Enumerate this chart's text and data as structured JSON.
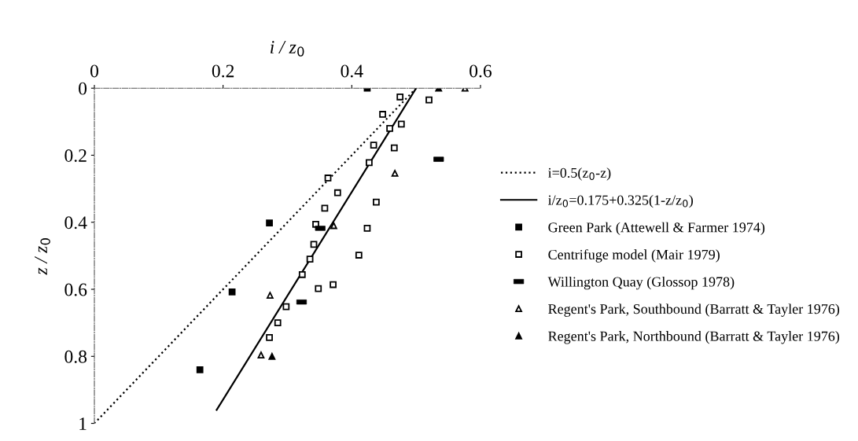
{
  "chart_data": {
    "type": "scatter",
    "xlabel": "i / z$_{0}$",
    "ylabel": "z / z$_{0}$",
    "xlim": [
      0,
      0.6
    ],
    "ylim": [
      1,
      0
    ],
    "xticks": [
      0,
      0.2,
      0.4,
      0.6
    ],
    "yticks": [
      0,
      0.2,
      0.4,
      0.6,
      0.8,
      1
    ],
    "grid": false,
    "legend": "right",
    "series": [
      {
        "name": "i=0.5(z$_{0}$-z)",
        "type": "line",
        "line_style": "dotted",
        "marker": "none",
        "color": "#000000",
        "x": [
          0.5,
          0
        ],
        "values": [
          0,
          1
        ]
      },
      {
        "name": "i/z$_{0}$=0.175+0.325(1-z/z$_{0}$)",
        "type": "line",
        "line_style": "solid",
        "marker": "none",
        "color": "#000000",
        "x": [
          0.5,
          0.19
        ],
        "values": [
          0,
          0.96
        ]
      },
      {
        "name": "Green Park (Attewell & Farmer 1974)",
        "marker": "square",
        "color": "#000000",
        "x": [
          0.424,
          0.272,
          0.214,
          0.164
        ],
        "values": [
          0,
          0.402,
          0.608,
          0.84
        ]
      },
      {
        "name": "Centrifuge model (Mair 1979)",
        "marker": "square_open",
        "color": "#000000",
        "x": [
          0.52,
          0.475,
          0.448,
          0.477,
          0.459,
          0.434,
          0.466,
          0.427,
          0.363,
          0.378,
          0.438,
          0.358,
          0.344,
          0.424,
          0.341,
          0.411,
          0.335,
          0.323,
          0.348,
          0.371,
          0.298,
          0.285,
          0.272
        ],
        "values": [
          0.035,
          0.026,
          0.078,
          0.107,
          0.12,
          0.17,
          0.178,
          0.222,
          0.268,
          0.312,
          0.34,
          0.358,
          0.406,
          0.418,
          0.466,
          0.498,
          0.51,
          0.556,
          0.598,
          0.586,
          0.652,
          0.7,
          0.744
        ]
      },
      {
        "name": "Willington Quay (Glossop 1978)",
        "color": "#000000",
        "x": [
          0.535,
          0.351,
          0.322
        ],
        "values": [
          0.212,
          0.418,
          0.638
        ]
      },
      {
        "name": "Regent's Park, Southbound (Barratt & Tayler 1976)",
        "marker": "triangle_open",
        "color": "#000000",
        "x": [
          0.576,
          0.467,
          0.372,
          0.273,
          0.259
        ],
        "values": [
          0,
          0.254,
          0.41,
          0.618,
          0.796
        ]
      },
      {
        "name": "Regent's Park, Northbound (Barratt & Tayler 1976)",
        "marker": "triangle",
        "color": "#000000",
        "x": [
          0.535,
          0.276
        ],
        "values": [
          0,
          0.8
        ]
      }
    ]
  }
}
